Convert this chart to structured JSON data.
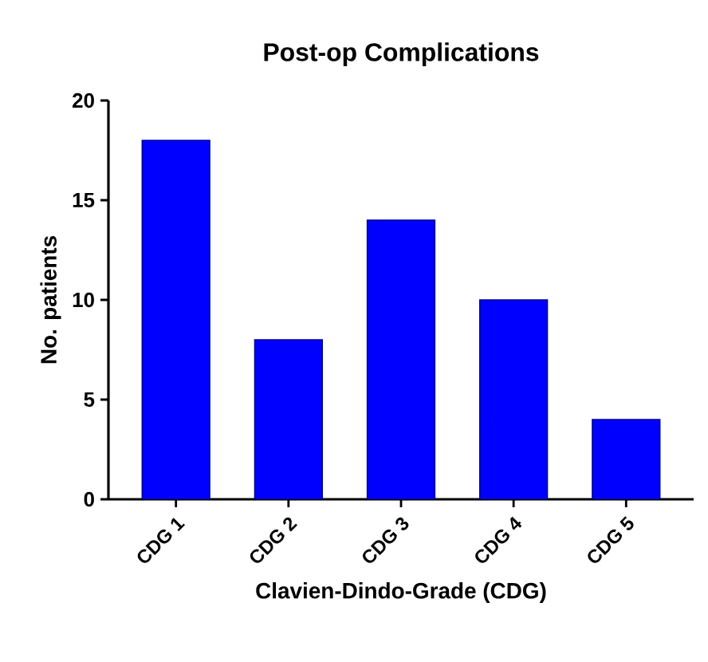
{
  "chart_data": {
    "type": "bar",
    "title": "Post-op Complications",
    "xlabel": "Clavien-Dindo-Grade (CDG)",
    "ylabel": "No. patients",
    "categories": [
      "CDG 1",
      "CDG 2",
      "CDG 3",
      "CDG 4",
      "CDG 5"
    ],
    "values": [
      18,
      8,
      14,
      10,
      4
    ],
    "color": "#0000ff",
    "ylim": [
      0,
      20
    ],
    "yticks": [
      0,
      5,
      10,
      15,
      20
    ]
  }
}
